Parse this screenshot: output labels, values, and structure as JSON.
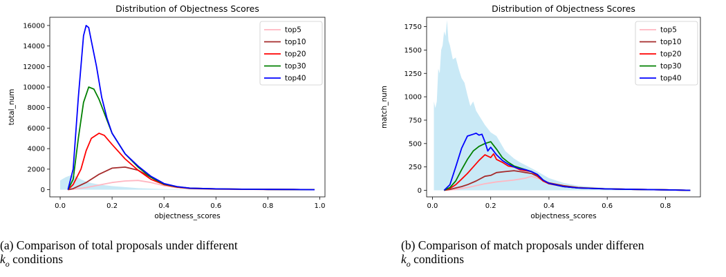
{
  "captions": {
    "a_line1": "(a) Comparison of total proposals under different",
    "a_line2": "k",
    "a_sub": "o",
    "a_line2_rest": " conditions",
    "b_line1": "(b) Comparison of match proposals under differen",
    "b_line2": "k",
    "b_sub": "o",
    "b_line2_rest": " conditions"
  },
  "chart_data": [
    {
      "type": "line",
      "title": "Distribution of Objectness Scores",
      "xlabel": "objectness_scores",
      "ylabel": "total_num",
      "xlim": [
        -0.04,
        1.02
      ],
      "ylim": [
        -700,
        16800
      ],
      "xticks": [
        0.0,
        0.2,
        0.4,
        0.6,
        0.8,
        1.0
      ],
      "xtick_labels": [
        "0.0",
        "0.2",
        "0.4",
        "0.6",
        "0.8",
        "1.0"
      ],
      "yticks": [
        0,
        2000,
        4000,
        6000,
        8000,
        10000,
        12000,
        14000,
        16000
      ],
      "ytick_labels": [
        "0",
        "2000",
        "4000",
        "6000",
        "8000",
        "10000",
        "12000",
        "14000",
        "16000"
      ],
      "grid": false,
      "legend": "top-right",
      "area": {
        "color": "#87ceeb",
        "x": [
          0.0,
          0.02,
          0.04,
          0.06,
          0.08,
          0.1,
          0.12,
          0.15,
          0.2,
          0.25,
          0.3,
          0.4,
          0.5,
          0.7,
          1.0
        ],
        "y": [
          900,
          1200,
          1400,
          1300,
          1000,
          800,
          650,
          500,
          350,
          250,
          150,
          60,
          20,
          5,
          0
        ]
      },
      "series": [
        {
          "name": "top5",
          "color": "#ffb6c1",
          "x": [
            0.03,
            0.05,
            0.1,
            0.15,
            0.2,
            0.25,
            0.3,
            0.35,
            0.4,
            0.45,
            0.5,
            0.6,
            0.7,
            0.8,
            0.9,
            0.98
          ],
          "y": [
            0,
            50,
            200,
            450,
            700,
            850,
            900,
            700,
            400,
            200,
            100,
            50,
            30,
            20,
            10,
            0
          ]
        },
        {
          "name": "top10",
          "color": "#a52a2a",
          "x": [
            0.03,
            0.05,
            0.1,
            0.15,
            0.2,
            0.25,
            0.3,
            0.35,
            0.4,
            0.45,
            0.5,
            0.6,
            0.7,
            0.8,
            0.9,
            0.98
          ],
          "y": [
            0,
            100,
            700,
            1500,
            2100,
            2200,
            1900,
            1200,
            500,
            250,
            120,
            60,
            40,
            30,
            20,
            0
          ]
        },
        {
          "name": "top20",
          "color": "#ff0000",
          "x": [
            0.03,
            0.05,
            0.08,
            0.1,
            0.12,
            0.15,
            0.17,
            0.2,
            0.25,
            0.3,
            0.35,
            0.4,
            0.45,
            0.5,
            0.6,
            0.7,
            0.8,
            0.9,
            0.98
          ],
          "y": [
            0,
            500,
            2000,
            3800,
            5000,
            5500,
            5300,
            4400,
            3000,
            1900,
            1000,
            500,
            250,
            150,
            80,
            50,
            30,
            20,
            0
          ]
        },
        {
          "name": "top30",
          "color": "#008000",
          "x": [
            0.03,
            0.05,
            0.07,
            0.09,
            0.11,
            0.13,
            0.15,
            0.18,
            0.2,
            0.25,
            0.3,
            0.35,
            0.4,
            0.45,
            0.5,
            0.6,
            0.7,
            0.8,
            0.9,
            0.98
          ],
          "y": [
            0,
            1000,
            5000,
            8500,
            10000,
            9800,
            8800,
            6800,
            5500,
            3500,
            2200,
            1200,
            550,
            280,
            150,
            80,
            50,
            30,
            20,
            0
          ]
        },
        {
          "name": "top40",
          "color": "#0000ff",
          "x": [
            0.03,
            0.05,
            0.07,
            0.09,
            0.1,
            0.11,
            0.12,
            0.14,
            0.16,
            0.18,
            0.2,
            0.25,
            0.3,
            0.35,
            0.4,
            0.45,
            0.5,
            0.6,
            0.7,
            0.8,
            0.9,
            0.98
          ],
          "y": [
            0,
            2000,
            9000,
            15000,
            16000,
            15800,
            14500,
            12000,
            9000,
            7000,
            5500,
            3500,
            2300,
            1300,
            600,
            300,
            150,
            80,
            50,
            30,
            20,
            0
          ]
        }
      ]
    },
    {
      "type": "line",
      "title": "Distribution of Objectness Scores",
      "xlabel": "objectness_scores",
      "ylabel": "match_num",
      "xlim": [
        -0.02,
        0.92
      ],
      "ylim": [
        -70,
        1850
      ],
      "xticks": [
        0.0,
        0.2,
        0.4,
        0.6,
        0.8
      ],
      "xtick_labels": [
        "0.0",
        "0.2",
        "0.4",
        "0.6",
        "0.8"
      ],
      "yticks": [
        0,
        250,
        500,
        750,
        1000,
        1250,
        1500,
        1750
      ],
      "ytick_labels": [
        "0",
        "250",
        "500",
        "750",
        "1000",
        "1250",
        "1500",
        "1750"
      ],
      "grid": false,
      "legend": "top-right",
      "area": {
        "color": "#87ceeb",
        "x": [
          0.005,
          0.01,
          0.015,
          0.02,
          0.025,
          0.03,
          0.035,
          0.04,
          0.045,
          0.05,
          0.055,
          0.06,
          0.07,
          0.08,
          0.09,
          0.1,
          0.11,
          0.12,
          0.13,
          0.14,
          0.15,
          0.16,
          0.18,
          0.2,
          0.22,
          0.25,
          0.28,
          0.3,
          0.35,
          0.4,
          0.45,
          0.5,
          0.6,
          0.7,
          0.8,
          0.885
        ],
        "y": [
          950,
          880,
          950,
          1300,
          1250,
          1500,
          1550,
          1700,
          1650,
          1820,
          1600,
          1550,
          1400,
          1420,
          1300,
          1200,
          1150,
          1020,
          900,
          950,
          850,
          800,
          700,
          620,
          580,
          420,
          340,
          300,
          220,
          130,
          80,
          50,
          25,
          15,
          8,
          0
        ]
      },
      "series": [
        {
          "name": "top5",
          "color": "#ffb6c1",
          "x": [
            0.04,
            0.06,
            0.08,
            0.1,
            0.12,
            0.15,
            0.18,
            0.2,
            0.22,
            0.25,
            0.28,
            0.3,
            0.32,
            0.34,
            0.36,
            0.38,
            0.4,
            0.45,
            0.5,
            0.6,
            0.7,
            0.8,
            0.885
          ],
          "y": [
            0,
            5,
            10,
            20,
            30,
            50,
            70,
            80,
            90,
            100,
            110,
            120,
            130,
            150,
            130,
            110,
            80,
            50,
            30,
            15,
            10,
            5,
            0
          ]
        },
        {
          "name": "top10",
          "color": "#a52a2a",
          "x": [
            0.04,
            0.06,
            0.08,
            0.1,
            0.12,
            0.15,
            0.18,
            0.2,
            0.22,
            0.25,
            0.28,
            0.3,
            0.32,
            0.34,
            0.36,
            0.38,
            0.4,
            0.45,
            0.5,
            0.6,
            0.7,
            0.8,
            0.885
          ],
          "y": [
            0,
            10,
            25,
            40,
            60,
            100,
            150,
            160,
            190,
            200,
            210,
            200,
            190,
            180,
            150,
            100,
            80,
            50,
            30,
            15,
            10,
            5,
            0
          ]
        },
        {
          "name": "top20",
          "color": "#ff0000",
          "x": [
            0.04,
            0.06,
            0.08,
            0.1,
            0.12,
            0.14,
            0.16,
            0.18,
            0.2,
            0.21,
            0.22,
            0.24,
            0.26,
            0.28,
            0.3,
            0.32,
            0.34,
            0.36,
            0.38,
            0.4,
            0.45,
            0.5,
            0.6,
            0.7,
            0.8,
            0.885
          ],
          "y": [
            0,
            20,
            60,
            120,
            180,
            250,
            320,
            380,
            350,
            390,
            330,
            300,
            260,
            250,
            220,
            210,
            200,
            160,
            100,
            70,
            40,
            25,
            15,
            10,
            5,
            0
          ]
        },
        {
          "name": "top30",
          "color": "#008000",
          "x": [
            0.04,
            0.06,
            0.08,
            0.1,
            0.12,
            0.14,
            0.16,
            0.18,
            0.2,
            0.22,
            0.24,
            0.26,
            0.28,
            0.3,
            0.32,
            0.34,
            0.36,
            0.38,
            0.4,
            0.45,
            0.5,
            0.6,
            0.7,
            0.8,
            0.885
          ],
          "y": [
            0,
            30,
            100,
            220,
            330,
            420,
            470,
            500,
            520,
            440,
            350,
            300,
            260,
            240,
            220,
            200,
            170,
            110,
            75,
            40,
            25,
            15,
            10,
            5,
            0
          ]
        },
        {
          "name": "top40",
          "color": "#0000ff",
          "x": [
            0.04,
            0.06,
            0.08,
            0.1,
            0.12,
            0.14,
            0.15,
            0.16,
            0.17,
            0.18,
            0.19,
            0.2,
            0.22,
            0.24,
            0.26,
            0.28,
            0.3,
            0.32,
            0.34,
            0.36,
            0.38,
            0.4,
            0.45,
            0.5,
            0.6,
            0.7,
            0.8,
            0.885
          ],
          "y": [
            0,
            60,
            250,
            450,
            580,
            600,
            610,
            590,
            600,
            520,
            420,
            460,
            380,
            320,
            280,
            250,
            230,
            220,
            200,
            170,
            110,
            75,
            40,
            25,
            15,
            10,
            5,
            0
          ]
        }
      ]
    }
  ]
}
